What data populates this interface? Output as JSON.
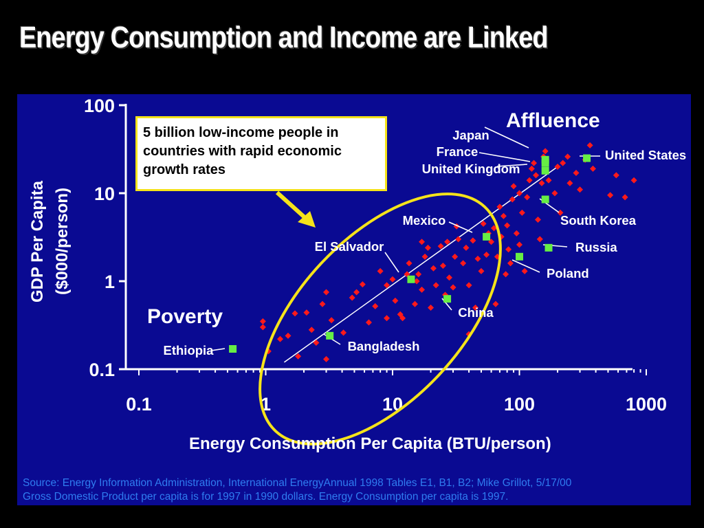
{
  "slide": {
    "title": "Energy Consumption and Income are Linked",
    "callout": "5 billion low-income people in countries with rapid economic growth rates",
    "source_line_1": "Source:  Energy Information Administration, International EnergyAnnual 1998 Tables E1, B1, B2; Mike Grillot, 5/17/00",
    "source_line_2": "Gross Domestic Product per capita is for 1997 in 1990 dollars. Energy Consumption per capita is 1997."
  },
  "colors": {
    "background": "#000000",
    "panel": "#0a0a92",
    "points": "#ff1a1a",
    "highlight": "#66ee44",
    "ellipse": "#f5e31a",
    "axis": "#ffffff",
    "source_text": "#2f7cf0"
  },
  "chart_data": {
    "type": "scatter",
    "xlabel": "Energy Consumption Per Capita (BTU/person)",
    "ylabel": [
      "GDP Per Capita",
      "($000/person)"
    ],
    "xscale": "log",
    "yscale": "log",
    "xlim": [
      0.1,
      1000
    ],
    "ylim": [
      0.1,
      100
    ],
    "x_ticks": [
      0.1,
      1,
      10,
      100,
      1000
    ],
    "x_tick_labels": [
      "0.1",
      "1",
      "10",
      "100",
      "1000"
    ],
    "y_ticks": [
      0.1,
      1,
      10,
      100
    ],
    "y_tick_labels": [
      "0.1",
      "1",
      "10",
      "100"
    ],
    "grid": false,
    "annotations": {
      "affluence": "Affluence",
      "poverty": "Poverty"
    },
    "trendline": [
      [
        1.4,
        0.12
      ],
      [
        200,
        20
      ]
    ],
    "highlighted": [
      {
        "label": "United States",
        "x": 340,
        "y": 25
      },
      {
        "label": "Japan",
        "x": 160,
        "y": 24
      },
      {
        "label": "France",
        "x": 160,
        "y": 22
      },
      {
        "label": "United Kingdom",
        "x": 160,
        "y": 18
      },
      {
        "label": "South Korea",
        "x": 160,
        "y": 8.5
      },
      {
        "label": "Russia",
        "x": 170,
        "y": 2.4
      },
      {
        "label": "Poland",
        "x": 100,
        "y": 1.9
      },
      {
        "label": "Mexico",
        "x": 55,
        "y": 3.2
      },
      {
        "label": "El Salvador",
        "x": 14,
        "y": 1.05
      },
      {
        "label": "China",
        "x": 27,
        "y": 0.63
      },
      {
        "label": "Bangladesh",
        "x": 3.2,
        "y": 0.24
      },
      {
        "label": "Ethiopia",
        "x": 0.55,
        "y": 0.17
      }
    ],
    "others": [
      [
        0.95,
        0.35
      ],
      [
        0.95,
        0.3
      ],
      [
        1.05,
        0.16
      ],
      [
        1.3,
        0.22
      ],
      [
        1.5,
        0.24
      ],
      [
        1.7,
        0.43
      ],
      [
        1.8,
        0.14
      ],
      [
        2.1,
        0.44
      ],
      [
        2.3,
        0.28
      ],
      [
        2.5,
        0.2
      ],
      [
        2.8,
        0.55
      ],
      [
        3.0,
        0.13
      ],
      [
        3.0,
        0.75
      ],
      [
        3.3,
        0.36
      ],
      [
        4.1,
        0.26
      ],
      [
        4.8,
        0.65
      ],
      [
        5.2,
        0.75
      ],
      [
        5.8,
        0.92
      ],
      [
        6.5,
        0.34
      ],
      [
        7.3,
        0.52
      ],
      [
        8.0,
        1.3
      ],
      [
        9.0,
        0.9
      ],
      [
        9.0,
        0.38
      ],
      [
        10.0,
        1.05
      ],
      [
        10.5,
        0.6
      ],
      [
        11.5,
        0.42
      ],
      [
        12.0,
        0.38
      ],
      [
        13.0,
        1.2
      ],
      [
        13.5,
        1.6
      ],
      [
        15.0,
        0.55
      ],
      [
        15.5,
        1.0
      ],
      [
        16.0,
        1.2
      ],
      [
        17.0,
        2.8
      ],
      [
        17.0,
        0.8
      ],
      [
        18.0,
        1.9
      ],
      [
        19.0,
        2.4
      ],
      [
        20.0,
        0.5
      ],
      [
        21.0,
        1.4
      ],
      [
        22.0,
        0.9
      ],
      [
        24.0,
        2.5
      ],
      [
        25.0,
        1.5
      ],
      [
        26.0,
        0.7
      ],
      [
        27.0,
        2.8
      ],
      [
        28.0,
        1.1
      ],
      [
        30.0,
        0.85
      ],
      [
        31.0,
        1.9
      ],
      [
        32.0,
        4.2
      ],
      [
        33.0,
        3.0
      ],
      [
        36.0,
        1.6
      ],
      [
        38.0,
        2.4
      ],
      [
        40.0,
        0.9
      ],
      [
        40.0,
        0.25
      ],
      [
        43.0,
        2.9
      ],
      [
        45.0,
        0.5
      ],
      [
        47.0,
        1.8
      ],
      [
        50.0,
        1.3
      ],
      [
        52.0,
        4.5
      ],
      [
        55.0,
        2.0
      ],
      [
        57.0,
        3.5
      ],
      [
        60.0,
        2.8
      ],
      [
        63.0,
        4.0
      ],
      [
        65.0,
        0.55
      ],
      [
        67.0,
        1.9
      ],
      [
        70.0,
        7.0
      ],
      [
        72.0,
        3.2
      ],
      [
        75.0,
        5.5
      ],
      [
        78.0,
        1.2
      ],
      [
        80.0,
        4.3
      ],
      [
        82.0,
        2.3
      ],
      [
        85.0,
        1.6
      ],
      [
        88.0,
        8.5
      ],
      [
        90.0,
        12.0
      ],
      [
        95.0,
        3.5
      ],
      [
        100.0,
        2.6
      ],
      [
        100.0,
        10.0
      ],
      [
        105.0,
        6.0
      ],
      [
        110.0,
        1.3
      ],
      [
        115.0,
        9.0
      ],
      [
        120.0,
        14.0
      ],
      [
        125.0,
        19.0
      ],
      [
        130.0,
        22.0
      ],
      [
        135.0,
        16.0
      ],
      [
        140.0,
        5.0
      ],
      [
        145.0,
        3.0
      ],
      [
        150.0,
        13.0
      ],
      [
        155.0,
        26.0
      ],
      [
        160.0,
        30.0
      ],
      [
        170.0,
        14.0
      ],
      [
        190.0,
        10.0
      ],
      [
        200.0,
        20.0
      ],
      [
        210.0,
        6.0
      ],
      [
        220.0,
        22.0
      ],
      [
        240.0,
        26.0
      ],
      [
        250.0,
        13.0
      ],
      [
        280.0,
        17.0
      ],
      [
        300.0,
        11.0
      ],
      [
        330.0,
        24.0
      ],
      [
        360.0,
        35.0
      ],
      [
        380.0,
        19.0
      ],
      [
        520.0,
        9.5
      ],
      [
        580.0,
        16.0
      ],
      [
        680.0,
        9.0
      ],
      [
        800.0,
        14.0
      ]
    ]
  }
}
